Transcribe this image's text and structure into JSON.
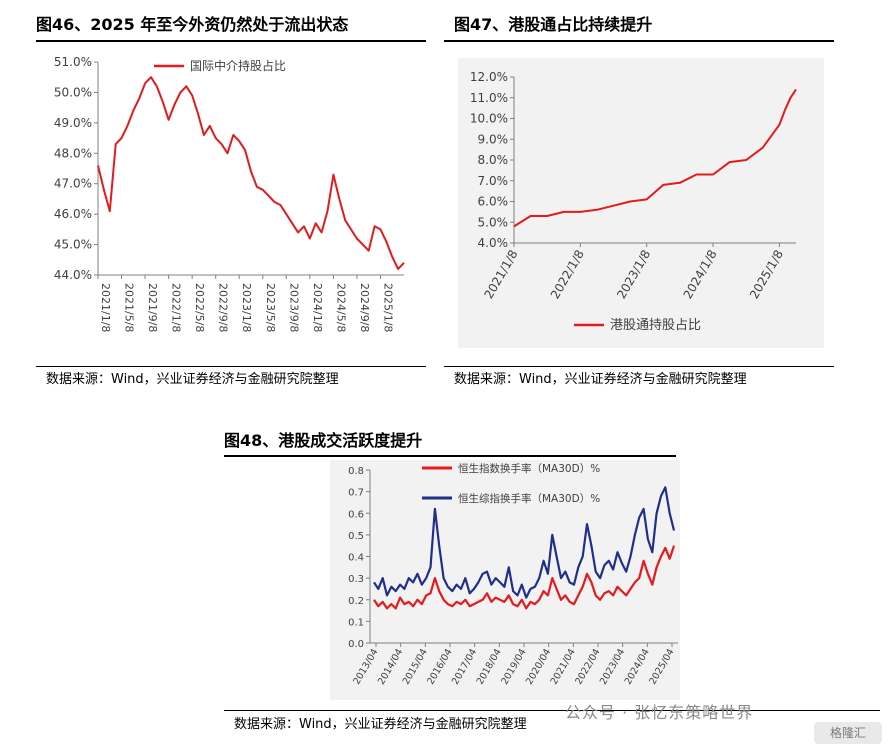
{
  "fig46": {
    "title": "图46、2025 年至今外资仍然处于流出状态",
    "source": "数据来源：Wind，兴业证券经济与金融研究院整理"
  },
  "fig47": {
    "title": "图47、港股通占比持续提升",
    "source": "数据来源：Wind，兴业证券经济与金融研究院整理"
  },
  "fig48": {
    "title": "图48、港股成交活跃度提升",
    "source": "数据来源：Wind，兴业证券经济与金融研究院整理"
  },
  "watermark": {
    "text": "公众号 · 张忆东策略世界",
    "badge": "格隆汇"
  },
  "chart_data": [
    {
      "id": "fig46",
      "type": "line",
      "series": [
        {
          "name": "国际中介持股占比",
          "color": "#e41a1c",
          "x": [
            "2021/1/8",
            "2021/2/8",
            "2021/3/8",
            "2021/4/8",
            "2021/5/8",
            "2021/6/8",
            "2021/7/8",
            "2021/8/8",
            "2021/9/8",
            "2021/10/8",
            "2021/11/8",
            "2021/12/8",
            "2022/1/8",
            "2022/2/8",
            "2022/3/8",
            "2022/4/8",
            "2022/5/8",
            "2022/6/8",
            "2022/7/8",
            "2022/8/8",
            "2022/9/8",
            "2022/10/8",
            "2022/11/8",
            "2022/12/8",
            "2023/1/8",
            "2023/2/8",
            "2023/3/8",
            "2023/4/8",
            "2023/5/8",
            "2023/6/8",
            "2023/7/8",
            "2023/8/8",
            "2023/9/8",
            "2023/10/8",
            "2023/11/8",
            "2023/12/8",
            "2024/1/8",
            "2024/2/8",
            "2024/3/8",
            "2024/4/8",
            "2024/5/8",
            "2024/6/8",
            "2024/7/8",
            "2024/8/8",
            "2024/9/8",
            "2024/10/8",
            "2024/11/8",
            "2024/12/8",
            "2025/1/8",
            "2025/2/8",
            "2025/3/8",
            "2025/4/8",
            "2025/5/8"
          ],
          "values": [
            47.6,
            46.8,
            46.1,
            48.3,
            48.5,
            48.9,
            49.4,
            49.8,
            50.3,
            50.5,
            50.2,
            49.7,
            49.1,
            49.6,
            50.0,
            50.2,
            49.9,
            49.3,
            48.6,
            48.9,
            48.5,
            48.3,
            48.0,
            48.6,
            48.4,
            48.1,
            47.4,
            46.9,
            46.8,
            46.6,
            46.4,
            46.3,
            46.0,
            45.7,
            45.4,
            45.6,
            45.2,
            45.7,
            45.4,
            46.1,
            47.3,
            46.5,
            45.8,
            45.5,
            45.2,
            45.0,
            44.8,
            45.6,
            45.5,
            45.1,
            44.6,
            44.2,
            44.4
          ]
        }
      ],
      "ylim": [
        44.0,
        51.0
      ],
      "yticks": [
        "51.0%",
        "50.0%",
        "49.0%",
        "48.0%",
        "47.0%",
        "46.0%",
        "45.0%",
        "44.0%"
      ],
      "xticks": [
        "2021/1/8",
        "2021/5/8",
        "2021/9/8",
        "2022/1/8",
        "2022/5/8",
        "2022/9/8",
        "2023/1/8",
        "2023/5/8",
        "2023/9/8",
        "2024/1/8",
        "2024/5/8",
        "2024/9/8",
        "2025/1/8"
      ],
      "grid": false,
      "legend": "top-center"
    },
    {
      "id": "fig47",
      "type": "line",
      "series": [
        {
          "name": "港股通持股占比",
          "color": "#e41a1c",
          "x": [
            "2021/1/8",
            "2021/4/8",
            "2021/7/8",
            "2021/10/8",
            "2022/1/8",
            "2022/4/8",
            "2022/7/8",
            "2022/10/8",
            "2023/1/8",
            "2023/4/8",
            "2023/7/8",
            "2023/10/8",
            "2024/1/8",
            "2024/4/8",
            "2024/7/8",
            "2024/10/8",
            "2025/1/8",
            "2025/2/8",
            "2025/3/8",
            "2025/4/8"
          ],
          "values": [
            4.8,
            5.3,
            5.3,
            5.5,
            5.5,
            5.6,
            5.8,
            6.0,
            6.1,
            6.8,
            6.9,
            7.3,
            7.3,
            7.9,
            8.0,
            8.6,
            9.7,
            10.4,
            11.0,
            11.4
          ]
        }
      ],
      "ylim": [
        4.0,
        12.0
      ],
      "yticks": [
        "12.0%",
        "11.0%",
        "10.0%",
        "9.0%",
        "8.0%",
        "7.0%",
        "6.0%",
        "5.0%",
        "4.0%"
      ],
      "xticks": [
        "2021/1/8",
        "2022/1/8",
        "2023/1/8",
        "2024/1/8",
        "2025/1/8"
      ],
      "grid": false,
      "legend": "bottom-center"
    },
    {
      "id": "fig48",
      "type": "line",
      "series": [
        {
          "name": "恒生指数换手率（MA30D）%",
          "color": "#e41a1c",
          "values": [
            0.2,
            0.17,
            0.19,
            0.16,
            0.18,
            0.16,
            0.21,
            0.18,
            0.19,
            0.17,
            0.2,
            0.18,
            0.22,
            0.23,
            0.3,
            0.24,
            0.2,
            0.18,
            0.17,
            0.19,
            0.18,
            0.2,
            0.17,
            0.18,
            0.19,
            0.2,
            0.23,
            0.19,
            0.21,
            0.2,
            0.19,
            0.22,
            0.18,
            0.17,
            0.2,
            0.16,
            0.19,
            0.18,
            0.2,
            0.24,
            0.22,
            0.3,
            0.25,
            0.2,
            0.22,
            0.19,
            0.18,
            0.22,
            0.26,
            0.32,
            0.28,
            0.22,
            0.2,
            0.23,
            0.24,
            0.22,
            0.26,
            0.24,
            0.22,
            0.25,
            0.28,
            0.3,
            0.38,
            0.32,
            0.27,
            0.35,
            0.4,
            0.44,
            0.39,
            0.45
          ]
        },
        {
          "name": "恒生综指换手率（MA30D）%",
          "color": "#1f2f8a",
          "values": [
            0.28,
            0.25,
            0.3,
            0.22,
            0.26,
            0.24,
            0.27,
            0.25,
            0.3,
            0.28,
            0.32,
            0.27,
            0.3,
            0.35,
            0.62,
            0.45,
            0.3,
            0.26,
            0.24,
            0.27,
            0.25,
            0.3,
            0.23,
            0.25,
            0.28,
            0.32,
            0.33,
            0.27,
            0.3,
            0.28,
            0.26,
            0.35,
            0.24,
            0.22,
            0.27,
            0.21,
            0.25,
            0.26,
            0.3,
            0.38,
            0.32,
            0.5,
            0.4,
            0.3,
            0.33,
            0.28,
            0.27,
            0.35,
            0.4,
            0.55,
            0.45,
            0.33,
            0.3,
            0.36,
            0.38,
            0.34,
            0.42,
            0.37,
            0.33,
            0.4,
            0.5,
            0.58,
            0.62,
            0.48,
            0.42,
            0.6,
            0.68,
            0.72,
            0.6,
            0.52
          ]
        }
      ],
      "ylim": [
        0,
        0.8
      ],
      "yticks": [
        "0.8",
        "0.7",
        "0.6",
        "0.5",
        "0.4",
        "0.3",
        "0.2",
        "0.1",
        "0.0"
      ],
      "xticks": [
        "2013/04",
        "2014/04",
        "2015/04",
        "2016/04",
        "2017/04",
        "2018/04",
        "2019/04",
        "2020/04",
        "2021/04",
        "2022/04",
        "2023/04",
        "2024/04",
        "2025/04"
      ],
      "grid": false,
      "legend": "top-left"
    }
  ]
}
